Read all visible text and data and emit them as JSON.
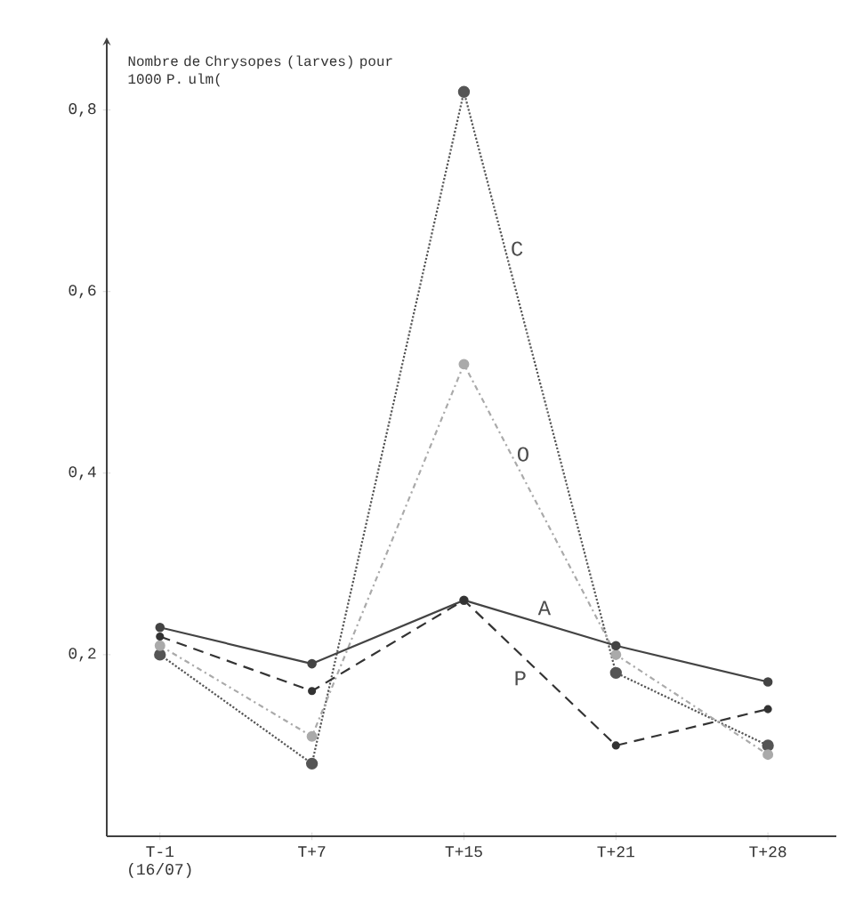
{
  "chart_data": {
    "type": "line",
    "ylabel": "Nombre de Chrysopes (larves) pour 1000 P. ulm(",
    "categories": [
      "T-1 (16/07)",
      "T+7",
      "T+15",
      "T+21",
      "T+28"
    ],
    "ylim": [
      0,
      0.88
    ],
    "yticks": [
      {
        "value": 0.2,
        "label": "0,2"
      },
      {
        "value": 0.4,
        "label": "0,4"
      },
      {
        "value": 0.6,
        "label": "0,6"
      },
      {
        "value": 0.8,
        "label": "0,8"
      }
    ],
    "marker": "circle",
    "series": [
      {
        "name": "C",
        "color": "#555555",
        "line_style": "dotted",
        "values": [
          0.2,
          0.08,
          0.82,
          0.18,
          0.1
        ]
      },
      {
        "name": "O",
        "color": "#aaaaaa",
        "line_style": "dashdotted",
        "values": [
          0.21,
          0.11,
          0.52,
          0.2,
          0.09
        ]
      },
      {
        "name": "A",
        "color": "#444444",
        "line_style": "solid",
        "values": [
          0.23,
          0.19,
          0.26,
          0.21,
          0.17
        ]
      },
      {
        "name": "P",
        "color": "#333333",
        "line_style": "dashed",
        "values": [
          0.22,
          0.16,
          0.26,
          0.1,
          0.14
        ]
      }
    ]
  }
}
